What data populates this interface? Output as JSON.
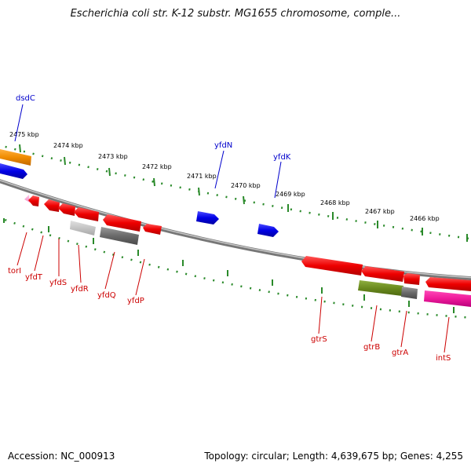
{
  "title": "Escherichia coli str. K-12 substr. MG1655 chromosome, comple...",
  "footer": {
    "accession": "Accession: NC_000913",
    "summary": "Topology: circular; Length: 4,639,675 bp; Genes: 4,255"
  },
  "colors": {
    "forward_label": "#0000cc",
    "reverse_label": "#cc0000",
    "tick": "#2a8a2a",
    "backbone": "#808080"
  },
  "ruler_labels": [
    "2475 kbp",
    "2474 kbp",
    "2473 kbp",
    "2472 kbp",
    "2471 kbp",
    "2470 kbp",
    "2469 kbp",
    "2468 kbp",
    "2467 kbp",
    "2466 kbp"
  ],
  "forward_labels": [
    "dsdC",
    "yfdN",
    "yfdK"
  ],
  "reverse_labels": [
    "torI",
    "yfdT",
    "yfdS",
    "yfdR",
    "yfdQ",
    "yfdP",
    "gtrS",
    "gtrB",
    "gtrA",
    "intS"
  ]
}
